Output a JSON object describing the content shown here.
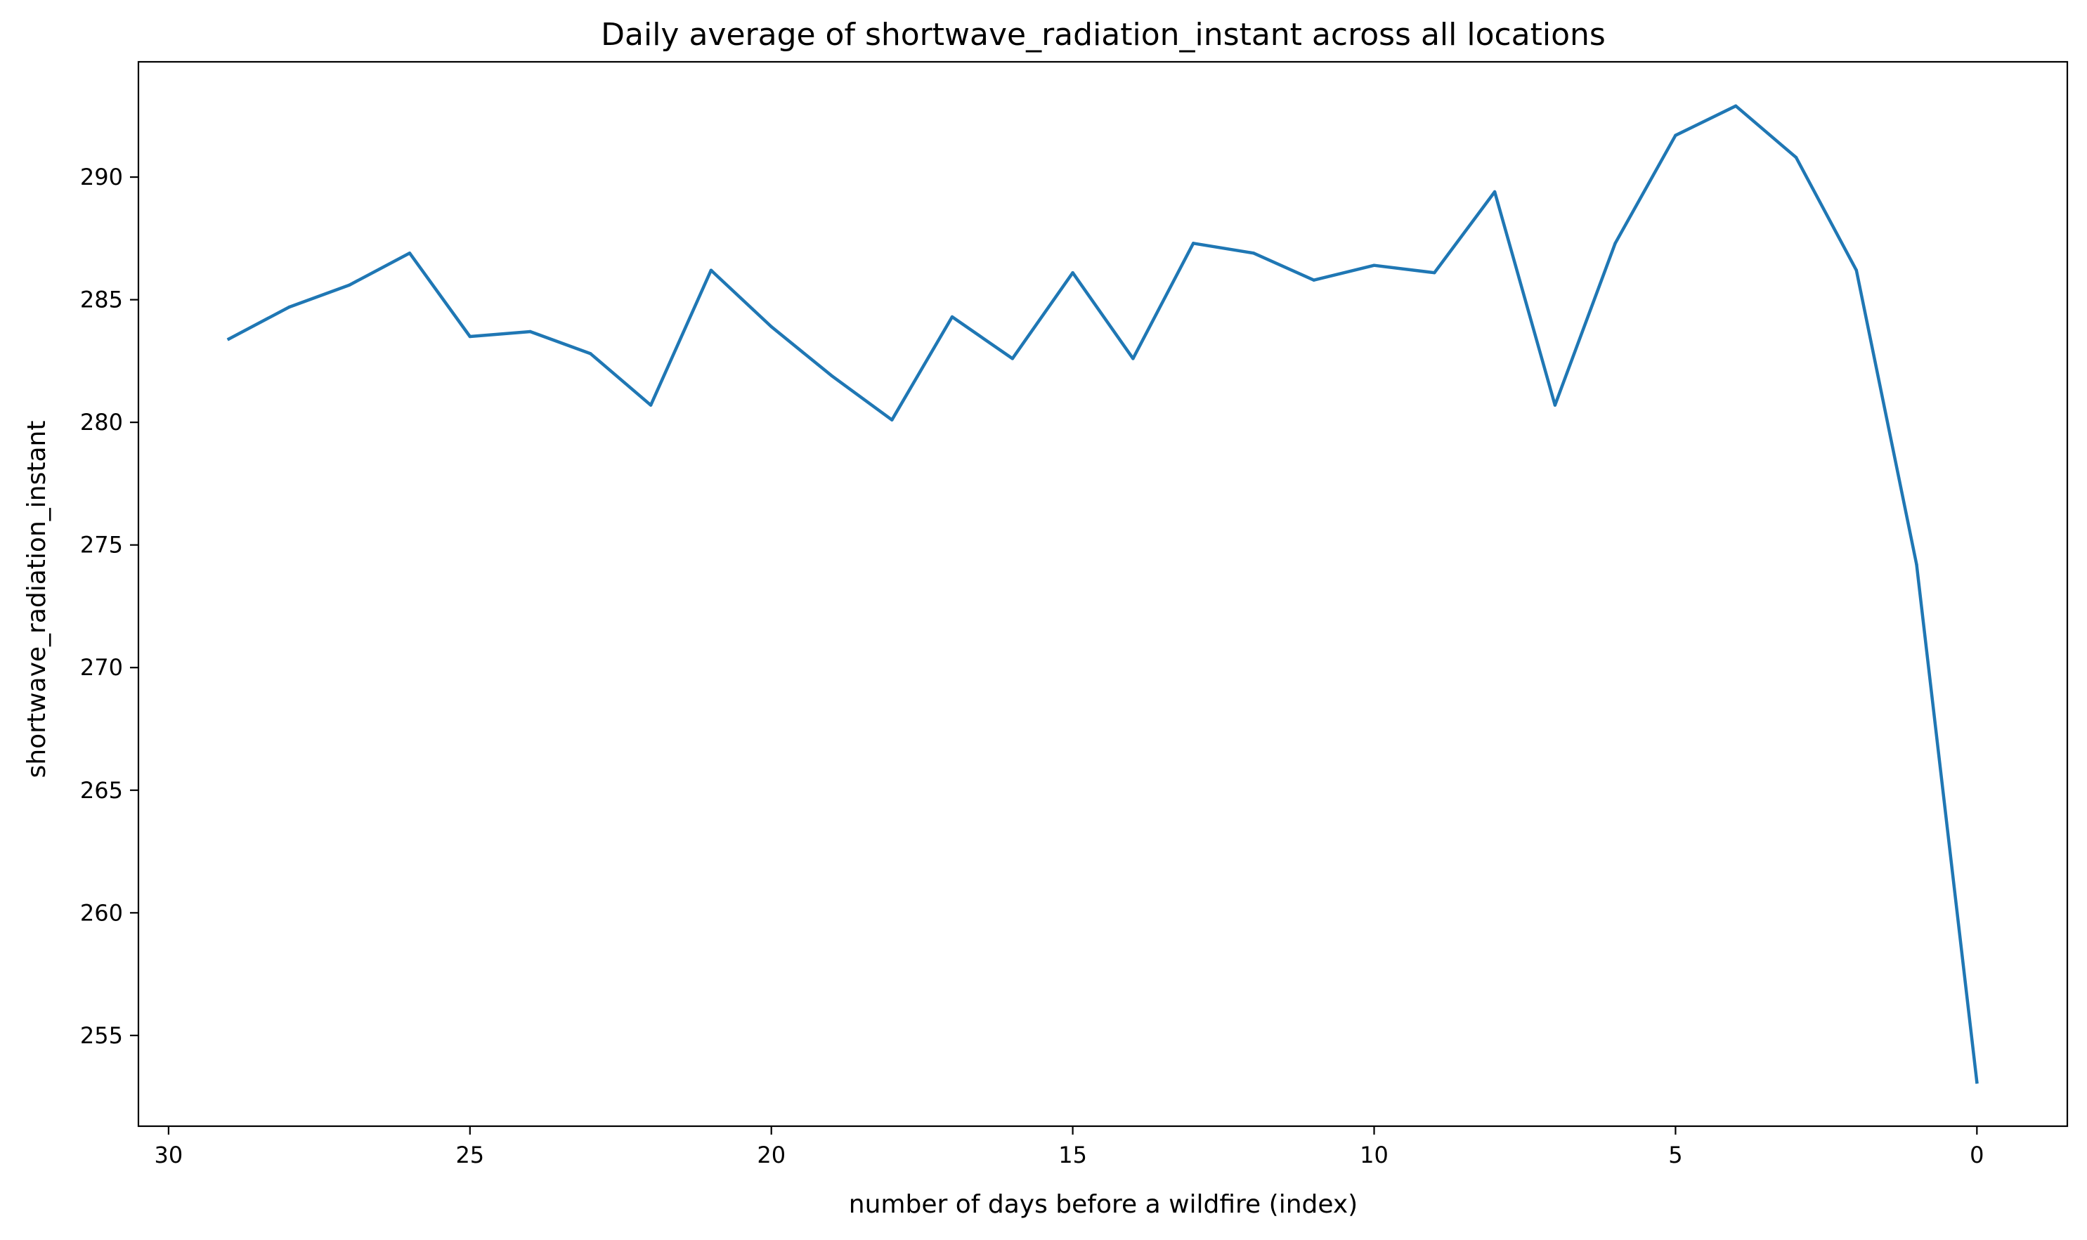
{
  "chart_data": {
    "type": "line",
    "title": "Daily average of shortwave_radiation_instant across all locations",
    "xlabel": "number of days before a wildfire (index)",
    "ylabel": "shortwave_radiation_instant",
    "x_inverted": true,
    "xlim": [
      30.5,
      -1.5
    ],
    "ylim": [
      251.3,
      294.7
    ],
    "xticks": [
      30,
      25,
      20,
      15,
      10,
      5,
      0
    ],
    "yticks": [
      255,
      260,
      265,
      270,
      275,
      280,
      285,
      290
    ],
    "grid": false,
    "color": "#1f77b4",
    "x": [
      29,
      28,
      27,
      26,
      25,
      24,
      23,
      22,
      21,
      20,
      19,
      18,
      17,
      16,
      15,
      14,
      13,
      12,
      11,
      10,
      9,
      8,
      7,
      6,
      5,
      4,
      3,
      2,
      1,
      0
    ],
    "values": [
      283.4,
      284.7,
      285.6,
      286.9,
      283.5,
      283.7,
      282.8,
      280.7,
      286.2,
      283.9,
      281.9,
      280.1,
      284.3,
      282.6,
      286.1,
      282.6,
      287.3,
      286.9,
      285.8,
      286.4,
      286.1,
      289.4,
      280.7,
      287.3,
      291.7,
      292.9,
      290.8,
      286.2,
      274.2,
      253.1
    ]
  }
}
